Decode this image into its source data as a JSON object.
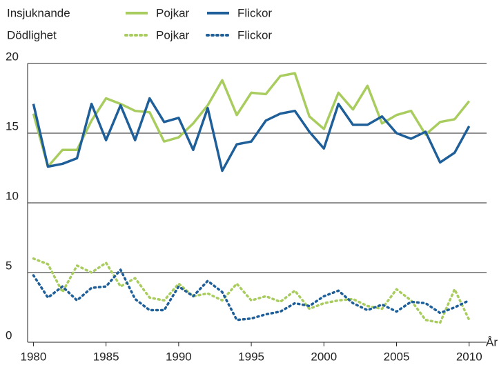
{
  "chart_data": {
    "type": "line",
    "x": [
      1980,
      1981,
      1982,
      1983,
      1984,
      1985,
      1986,
      1987,
      1988,
      1989,
      1990,
      1991,
      1992,
      1993,
      1994,
      1995,
      1996,
      1997,
      1998,
      1999,
      2000,
      2001,
      2002,
      2003,
      2004,
      2005,
      2006,
      2007,
      2008,
      2009,
      2010
    ],
    "x_label": "År",
    "xlim": [
      1979.6,
      2011.2
    ],
    "xticks": [
      1980,
      1985,
      1990,
      1995,
      2000,
      2005,
      2010
    ],
    "ylim": [
      0,
      20
    ],
    "yticks": [
      0,
      5,
      10,
      15,
      20
    ],
    "grid": true,
    "series_groups": [
      {
        "name": "Insjuknande",
        "style": "solid",
        "series": [
          {
            "name": "Pojkar",
            "color": "#a8cc5e",
            "values": [
              16.4,
              12.6,
              13.8,
              13.8,
              15.9,
              17.5,
              17.1,
              16.6,
              16.5,
              14.4,
              14.7,
              15.7,
              17.0,
              18.8,
              16.3,
              17.9,
              17.8,
              19.1,
              19.3,
              16.2,
              15.3,
              17.9,
              16.7,
              18.4,
              15.7,
              16.3,
              16.6,
              14.9,
              15.8,
              16.0,
              17.3
            ]
          },
          {
            "name": "Flickor",
            "color": "#1f5f99",
            "values": [
              17.1,
              12.6,
              12.8,
              13.2,
              17.1,
              14.5,
              17.0,
              14.5,
              17.5,
              15.8,
              16.1,
              13.8,
              16.8,
              12.3,
              14.2,
              14.4,
              15.9,
              16.4,
              16.6,
              15.1,
              13.9,
              17.1,
              15.6,
              15.6,
              16.2,
              15.0,
              14.6,
              15.1,
              12.9,
              13.6,
              15.5
            ]
          }
        ]
      },
      {
        "name": "Dödlighet",
        "style": "dotted",
        "series": [
          {
            "name": "Pojkar",
            "color": "#a8cc5e",
            "values": [
              6.0,
              5.6,
              3.6,
              5.5,
              5.0,
              5.7,
              4.0,
              4.6,
              3.2,
              3.0,
              4.2,
              3.3,
              3.5,
              3.0,
              4.2,
              3.0,
              3.3,
              2.9,
              3.7,
              2.4,
              2.8,
              3.0,
              3.1,
              2.6,
              2.4,
              3.8,
              3.0,
              1.6,
              1.4,
              3.8,
              1.6
            ]
          },
          {
            "name": "Flickor",
            "color": "#1f5f99",
            "values": [
              4.8,
              3.2,
              4.0,
              3.0,
              3.9,
              4.0,
              5.2,
              3.1,
              2.3,
              2.3,
              4.0,
              3.3,
              4.4,
              3.6,
              1.6,
              1.7,
              2.0,
              2.2,
              2.8,
              2.6,
              3.3,
              3.7,
              2.8,
              2.3,
              2.7,
              2.2,
              2.9,
              2.8,
              2.1,
              2.5,
              3.0
            ]
          }
        ]
      }
    ]
  }
}
